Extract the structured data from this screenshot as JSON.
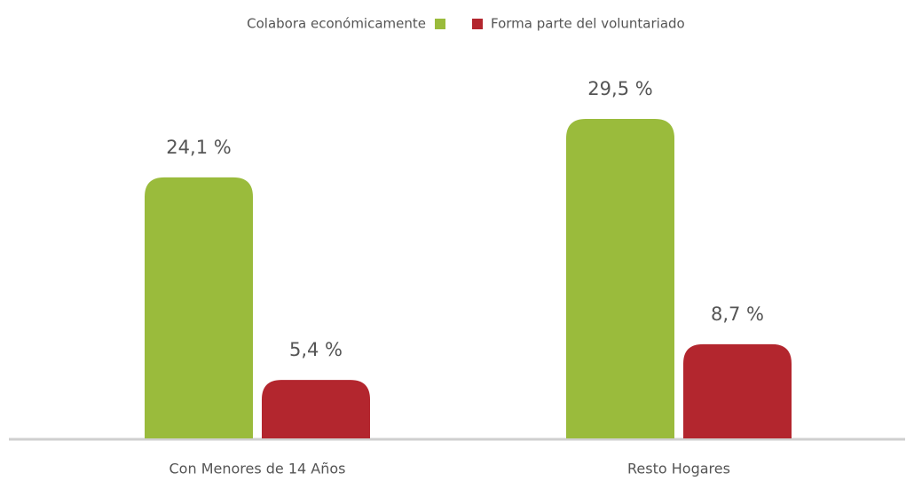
{
  "chart_data": {
    "type": "bar",
    "categories": [
      "Con Menores de 14 Años",
      "Resto Hogares"
    ],
    "series": [
      {
        "name": "Colabora económicamente",
        "color": "#9abb3c",
        "values": [
          24.1,
          29.5
        ],
        "value_labels": [
          "24,1 %",
          "29,5 %"
        ]
      },
      {
        "name": "Forma parte del voluntariado",
        "color": "#b3262e",
        "values": [
          5.4,
          8.7
        ],
        "value_labels": [
          "5,4 %",
          "8,7 %"
        ]
      }
    ]
  }
}
